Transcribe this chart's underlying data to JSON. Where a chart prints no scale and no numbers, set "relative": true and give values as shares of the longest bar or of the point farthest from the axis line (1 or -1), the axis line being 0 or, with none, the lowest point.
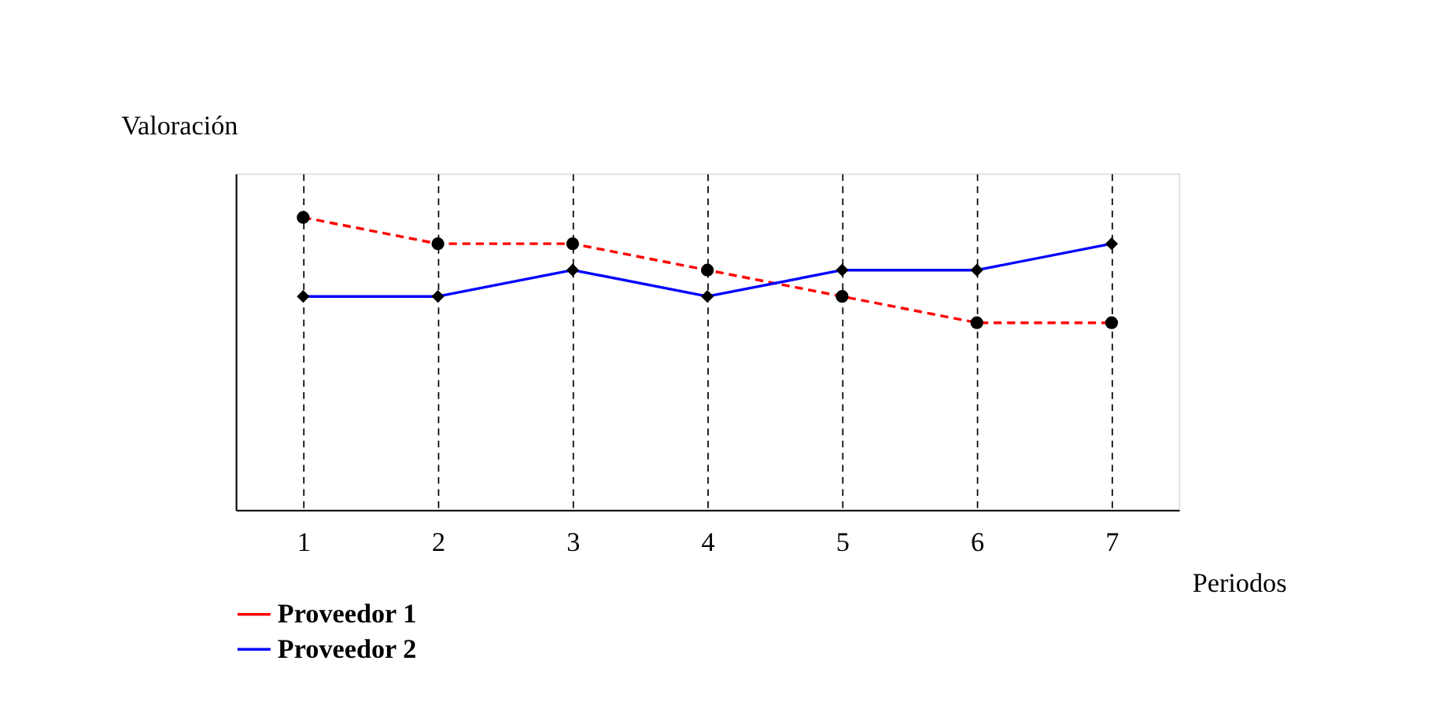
{
  "chart_data": {
    "type": "line",
    "relative": true,
    "xlabel": "Periodos",
    "ylabel": "Valoración",
    "categories": [
      "1",
      "2",
      "3",
      "4",
      "5",
      "6",
      "7"
    ],
    "series": [
      {
        "name": "Proveedor 1",
        "color": "#ff0000",
        "line_style": "dashed",
        "marker": "circle",
        "values": [
          1,
          0.91,
          0.91,
          0.82,
          0.73,
          0.64,
          0.64
        ]
      },
      {
        "name": "Proveedor 2",
        "color": "#0000ff",
        "line_style": "solid",
        "marker": "diamond",
        "values": [
          0.73,
          0.73,
          0.82,
          0.73,
          0.82,
          0.82,
          0.91
        ]
      }
    ],
    "grid": "x",
    "legend": "bottom left"
  }
}
